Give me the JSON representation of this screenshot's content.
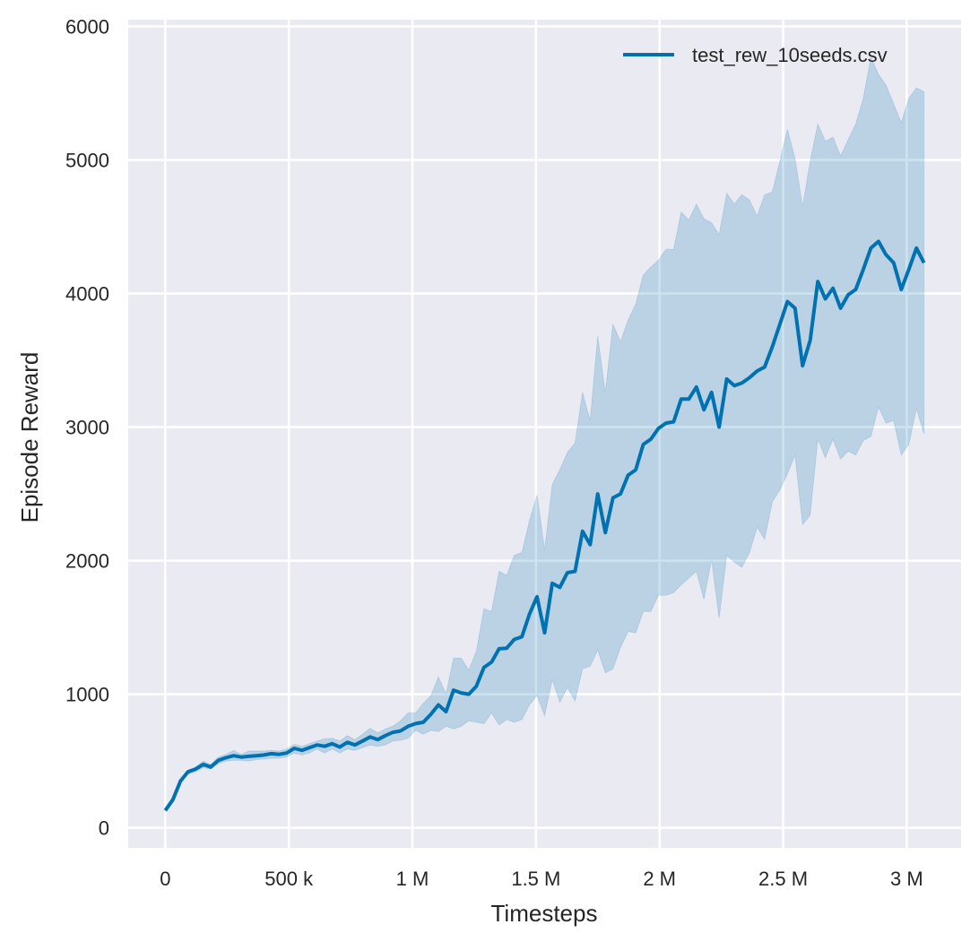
{
  "chart_data": {
    "type": "line",
    "title": "",
    "xlabel": "Timesteps",
    "ylabel": "Episode Reward",
    "xlim": [
      -150000,
      3220000
    ],
    "ylim": [
      -150,
      6050
    ],
    "grid": true,
    "legend_position": "top-right",
    "x_ticks": [
      0,
      500000,
      1000000,
      1500000,
      2000000,
      2500000,
      3000000
    ],
    "x_tick_labels": [
      "0",
      "500 k",
      "1 M",
      "1.5 M",
      "2 M",
      "2.5 M",
      "3 M"
    ],
    "y_ticks": [
      0,
      1000,
      2000,
      3000,
      4000,
      5000,
      6000
    ],
    "y_tick_labels": [
      "0",
      "1000",
      "2000",
      "3000",
      "4000",
      "5000",
      "6000"
    ],
    "colors": {
      "background": "#eaeaf2",
      "grid": "#ffffff",
      "line": "#0072b2",
      "band": "#0072b2"
    },
    "series": [
      {
        "name": "test_rew_10seeds.csv",
        "x": [
          0,
          30700,
          61400,
          92100,
          122800,
          153500,
          184200,
          214900,
          245600,
          276300,
          307000,
          337700,
          368400,
          399100,
          429800,
          460500,
          491200,
          521900,
          552600,
          583300,
          614000,
          644700,
          675400,
          706100,
          736800,
          767500,
          798200,
          828900,
          859600,
          890300,
          921000,
          951700,
          982400,
          1013100,
          1043800,
          1074500,
          1105200,
          1135900,
          1166600,
          1197300,
          1228000,
          1258700,
          1289400,
          1320100,
          1350800,
          1381500,
          1412200,
          1442900,
          1473600,
          1504300,
          1535000,
          1565700,
          1596400,
          1627100,
          1657800,
          1688500,
          1719200,
          1749900,
          1780600,
          1811300,
          1842000,
          1872700,
          1903400,
          1934100,
          1964800,
          1995500,
          2026200,
          2056900,
          2087600,
          2118300,
          2149000,
          2179700,
          2210400,
          2241100,
          2271800,
          2302500,
          2333200,
          2363900,
          2394600,
          2425300,
          2456000,
          2486700,
          2517400,
          2548100,
          2578800,
          2609500,
          2640200,
          2670900,
          2701600,
          2732300,
          2763000,
          2793700,
          2824400,
          2855100,
          2885800,
          2916500,
          2947200,
          2977900,
          3008600,
          3039300,
          3070000
        ],
        "mean": [
          130,
          210,
          350,
          420,
          440,
          475,
          455,
          505,
          525,
          540,
          530,
          535,
          540,
          545,
          555,
          550,
          560,
          595,
          580,
          600,
          620,
          610,
          630,
          605,
          640,
          620,
          650,
          680,
          660,
          690,
          715,
          725,
          760,
          780,
          790,
          850,
          920,
          870,
          1030,
          1010,
          1000,
          1060,
          1200,
          1240,
          1340,
          1345,
          1410,
          1430,
          1600,
          1730,
          1460,
          1830,
          1800,
          1910,
          1920,
          2220,
          2120,
          2500,
          2210,
          2470,
          2500,
          2640,
          2680,
          2870,
          2910,
          2990,
          3030,
          3040,
          3210,
          3210,
          3300,
          3130,
          3260,
          3000,
          3360,
          3310,
          3330,
          3370,
          3420,
          3450,
          3600,
          3770,
          3940,
          3890,
          3460,
          3650,
          4090,
          3960,
          4040,
          3890,
          3990,
          4030,
          4180,
          4340,
          4390,
          4290,
          4230,
          4030,
          4180,
          4340,
          4230
        ],
        "upper": [
          140,
          220,
          360,
          430,
          455,
          500,
          475,
          530,
          550,
          580,
          550,
          575,
          575,
          575,
          580,
          575,
          590,
          625,
          610,
          630,
          650,
          665,
          670,
          650,
          690,
          660,
          700,
          745,
          710,
          740,
          760,
          800,
          860,
          860,
          930,
          990,
          1130,
          1000,
          1270,
          1270,
          1180,
          1320,
          1640,
          1620,
          1920,
          1890,
          2040,
          2060,
          2300,
          2490,
          2080,
          2570,
          2680,
          2810,
          2880,
          3260,
          3050,
          3680,
          3260,
          3770,
          3640,
          3800,
          3920,
          4140,
          4200,
          4250,
          4330,
          4330,
          4610,
          4550,
          4670,
          4560,
          4530,
          4440,
          4750,
          4670,
          4740,
          4700,
          4580,
          4740,
          4760,
          4990,
          5230,
          5010,
          4650,
          4990,
          5270,
          5140,
          5170,
          5030,
          5150,
          5270,
          5460,
          5770,
          5640,
          5560,
          5420,
          5280,
          5460,
          5540,
          5510
        ],
        "lower": [
          125,
          200,
          340,
          400,
          420,
          450,
          440,
          480,
          500,
          505,
          505,
          500,
          510,
          515,
          520,
          520,
          530,
          560,
          545,
          560,
          590,
          560,
          590,
          560,
          590,
          580,
          600,
          620,
          610,
          620,
          650,
          655,
          670,
          730,
          700,
          730,
          720,
          760,
          740,
          760,
          800,
          790,
          780,
          860,
          770,
          810,
          790,
          810,
          920,
          990,
          840,
          1110,
          940,
          1050,
          950,
          1190,
          1210,
          1330,
          1160,
          1190,
          1350,
          1470,
          1460,
          1620,
          1620,
          1740,
          1740,
          1760,
          1820,
          1870,
          1920,
          1710,
          2010,
          1570,
          2040,
          1990,
          1950,
          2060,
          2250,
          2160,
          2440,
          2530,
          2650,
          2790,
          2270,
          2340,
          2910,
          2770,
          2910,
          2760,
          2820,
          2790,
          2900,
          2930,
          3150,
          3030,
          3050,
          2790,
          2870,
          3140,
          2950
        ]
      }
    ]
  }
}
